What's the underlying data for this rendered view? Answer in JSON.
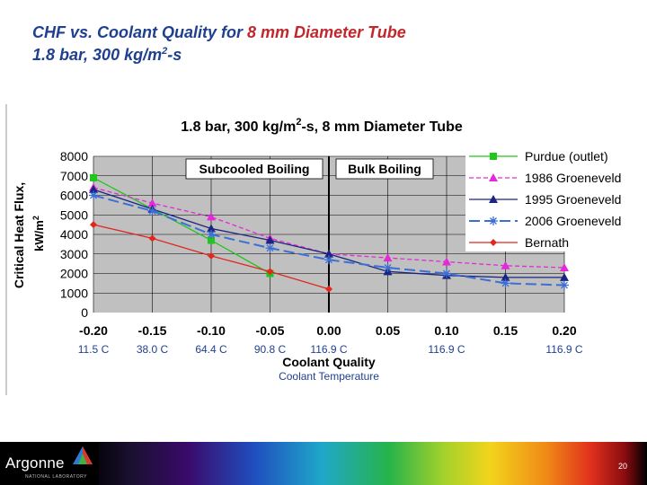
{
  "slide": {
    "title_prefix": "CHF vs. Coolant Quality for ",
    "title_highlight": "8 mm Diameter Tube",
    "subtitle_main": "1.8 bar, 300 kg/m",
    "subtitle_sup": "2",
    "subtitle_end": "-s"
  },
  "chart_data": {
    "type": "line",
    "title_main": "1.8 bar, 300 kg/m",
    "title_sup": "2",
    "title_end": "-s, 8 mm Diameter Tube",
    "xlabel": "Coolant Quality",
    "ylabel_main": "Critical Heat Flux,",
    "ylabel_unit": "kW/m",
    "ylabel_sup": "2",
    "xlim": [
      -0.2,
      0.2
    ],
    "ylim": [
      0,
      8000
    ],
    "x_ticks": [
      "-0.20",
      "-0.15",
      "-0.10",
      "-0.05",
      "0.00",
      "0.05",
      "0.10",
      "0.15",
      "0.20"
    ],
    "x_tick_values": [
      -0.2,
      -0.15,
      -0.1,
      -0.05,
      0,
      0.05,
      0.1,
      0.15,
      0.2
    ],
    "y_ticks": [
      "0",
      "1000",
      "2000",
      "3000",
      "4000",
      "5000",
      "6000",
      "7000",
      "8000"
    ],
    "y_tick_values": [
      0,
      1000,
      2000,
      3000,
      4000,
      5000,
      6000,
      7000,
      8000
    ],
    "grid": true,
    "legend_position": "right",
    "boiling_boundary_x": 0,
    "region_labels": {
      "subcooled": "Subcooled Boiling",
      "bulk": "Bulk Boiling"
    },
    "series": [
      {
        "name": "Purdue (outlet)",
        "color": "#22c41e",
        "marker": "square",
        "dash": "solid",
        "x": [
          -0.2,
          -0.1,
          -0.05
        ],
        "y": [
          6900,
          3700,
          2000
        ]
      },
      {
        "name": "1986 Groeneveld",
        "color": "#e32ad9",
        "marker": "triangle",
        "dash": "dashed",
        "x": [
          -0.2,
          -0.15,
          -0.1,
          -0.05,
          0.0,
          0.05,
          0.1,
          0.15,
          0.2
        ],
        "y": [
          6400,
          5600,
          4900,
          3800,
          3000,
          2800,
          2600,
          2400,
          2300
        ]
      },
      {
        "name": "1995 Groeneveld",
        "color": "#1b2480",
        "marker": "triangle",
        "dash": "solid",
        "x": [
          -0.2,
          -0.15,
          -0.1,
          -0.05,
          0.0,
          0.05,
          0.1,
          0.15,
          0.2
        ],
        "y": [
          6300,
          5300,
          4300,
          3700,
          3000,
          2100,
          1900,
          1800,
          1800
        ]
      },
      {
        "name": "2006 Groeneveld",
        "color": "#3c6fd6",
        "marker": "star",
        "dash": "longdash",
        "x": [
          -0.2,
          -0.15,
          -0.1,
          -0.05,
          0.0,
          0.05,
          0.1,
          0.15,
          0.2
        ],
        "y": [
          6000,
          5200,
          4000,
          3300,
          2700,
          2300,
          2000,
          1500,
          1400
        ]
      },
      {
        "name": "Bernath",
        "color": "#e0281e",
        "marker": "diamond",
        "dash": "solid",
        "x": [
          -0.2,
          -0.15,
          -0.1,
          -0.05,
          0.0
        ],
        "y": [
          4500,
          3800,
          2900,
          2100,
          1200
        ]
      }
    ],
    "temperature_label": "Coolant Temperature",
    "temperatures": [
      {
        "x": -0.2,
        "text": "11.5 C"
      },
      {
        "x": -0.15,
        "text": "38.0 C"
      },
      {
        "x": -0.1,
        "text": "64.4 C"
      },
      {
        "x": -0.05,
        "text": "90.8 C"
      },
      {
        "x": 0.0,
        "text": "116.9 C"
      },
      {
        "x": 0.1,
        "text": "116.9 C"
      },
      {
        "x": 0.2,
        "text": "116.9 C"
      }
    ]
  },
  "footer": {
    "logo_text": "Argonne",
    "logo_sub": "NATIONAL LABORATORY",
    "page_number": "20"
  }
}
